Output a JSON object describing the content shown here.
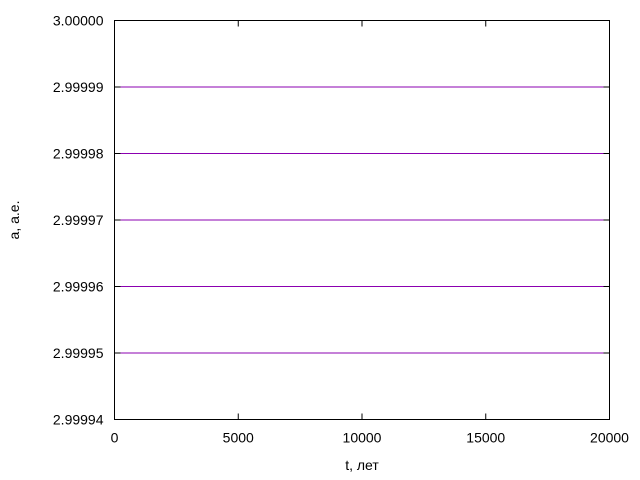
{
  "chart_data": {
    "type": "line",
    "xlabel": "t, лет",
    "ylabel": "a, а.е.",
    "xlim": [
      0,
      20000
    ],
    "ylim": [
      2.99994,
      3.0
    ],
    "xticks": [
      0,
      5000,
      10000,
      15000,
      20000
    ],
    "xtick_labels": [
      "0",
      "5000",
      "10000",
      "15000",
      "20000"
    ],
    "yticks": [
      2.99994,
      2.99995,
      2.99996,
      2.99997,
      2.99998,
      2.99999,
      3.0
    ],
    "ytick_labels": [
      "2.99994",
      "2.99995",
      "2.99996",
      "2.99997",
      "2.99998",
      "2.99999",
      "3.00000"
    ],
    "grid": false,
    "series": [
      {
        "x": [
          0,
          20000
        ],
        "y": [
          2.99999,
          2.99999
        ],
        "color": "#8b00b0"
      },
      {
        "x": [
          0,
          20000
        ],
        "y": [
          2.99998,
          2.99998
        ],
        "color": "#8b00b0"
      },
      {
        "x": [
          0,
          20000
        ],
        "y": [
          2.99997,
          2.99997
        ],
        "color": "#8b00b0"
      },
      {
        "x": [
          0,
          20000
        ],
        "y": [
          2.99996,
          2.99996
        ],
        "color": "#8b00b0"
      },
      {
        "x": [
          0,
          20000
        ],
        "y": [
          2.99995,
          2.99995
        ],
        "color": "#8b00b0"
      }
    ]
  }
}
